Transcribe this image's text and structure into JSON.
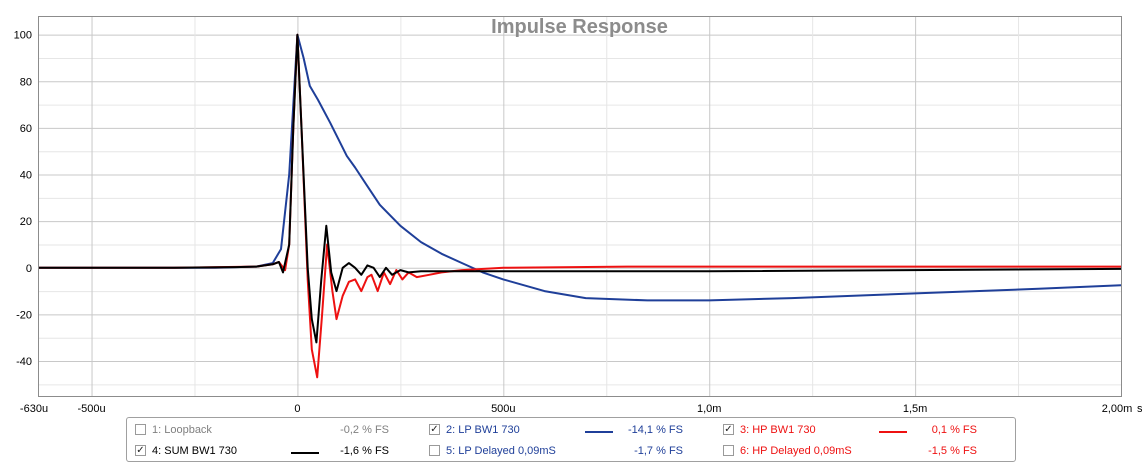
{
  "chart_data": {
    "type": "line",
    "title": "Impulse Response",
    "x_unit_label": "s",
    "xlim": [
      -630,
      2000
    ],
    "ylim": [
      -55,
      108
    ],
    "grid": true,
    "legend_placement": "bottom",
    "x_ticks": [
      {
        "value": -630,
        "label": "-630u"
      },
      {
        "value": -500,
        "label": "-500u"
      },
      {
        "value": 0,
        "label": "0"
      },
      {
        "value": 500,
        "label": "500u"
      },
      {
        "value": 1000,
        "label": "1,0m"
      },
      {
        "value": 1500,
        "label": "1,5m"
      },
      {
        "value": 2000,
        "label": "2,00m"
      }
    ],
    "y_ticks": [
      100,
      80,
      60,
      40,
      20,
      0,
      -20,
      -40
    ],
    "series": [
      {
        "name": "2: LP BW1 730",
        "color": "#1f3f99",
        "points": [
          [
            -630,
            0
          ],
          [
            -400,
            0
          ],
          [
            -200,
            0
          ],
          [
            -100,
            0.5
          ],
          [
            -60,
            2
          ],
          [
            -40,
            8
          ],
          [
            -20,
            40
          ],
          [
            0,
            100
          ],
          [
            15,
            90
          ],
          [
            30,
            78
          ],
          [
            50,
            72
          ],
          [
            80,
            62
          ],
          [
            100,
            55
          ],
          [
            120,
            48
          ],
          [
            140,
            43
          ],
          [
            170,
            35
          ],
          [
            200,
            27
          ],
          [
            250,
            18
          ],
          [
            300,
            11
          ],
          [
            350,
            6
          ],
          [
            400,
            2
          ],
          [
            450,
            -2
          ],
          [
            500,
            -5
          ],
          [
            600,
            -10
          ],
          [
            700,
            -13
          ],
          [
            850,
            -14
          ],
          [
            1000,
            -14
          ],
          [
            1200,
            -13
          ],
          [
            1500,
            -11
          ],
          [
            1800,
            -9
          ],
          [
            2000,
            -7.5
          ]
        ]
      },
      {
        "name": "3: HP BW1 730",
        "color": "#ee1111",
        "points": [
          [
            -630,
            0
          ],
          [
            -300,
            0
          ],
          [
            -100,
            0.5
          ],
          [
            -60,
            1.5
          ],
          [
            -45,
            2.5
          ],
          [
            -30,
            -1
          ],
          [
            -20,
            10
          ],
          [
            -10,
            60
          ],
          [
            0,
            100
          ],
          [
            10,
            60
          ],
          [
            25,
            -5
          ],
          [
            35,
            -35
          ],
          [
            48,
            -47
          ],
          [
            60,
            -20
          ],
          [
            72,
            10
          ],
          [
            85,
            -10
          ],
          [
            95,
            -22
          ],
          [
            110,
            -12
          ],
          [
            125,
            -6
          ],
          [
            140,
            -5
          ],
          [
            155,
            -10
          ],
          [
            170,
            -4
          ],
          [
            180,
            -3
          ],
          [
            195,
            -10
          ],
          [
            210,
            -2
          ],
          [
            225,
            -7
          ],
          [
            240,
            -1
          ],
          [
            255,
            -5
          ],
          [
            270,
            -2
          ],
          [
            290,
            -4
          ],
          [
            320,
            -3
          ],
          [
            350,
            -2
          ],
          [
            400,
            -1
          ],
          [
            500,
            0
          ],
          [
            800,
            0.5
          ],
          [
            2000,
            0.5
          ]
        ]
      },
      {
        "name": "4: SUM BW1 730",
        "color": "#000000",
        "points": [
          [
            -630,
            0
          ],
          [
            -300,
            0
          ],
          [
            -150,
            0.3
          ],
          [
            -100,
            0.5
          ],
          [
            -60,
            1.5
          ],
          [
            -45,
            2.5
          ],
          [
            -35,
            -2
          ],
          [
            -20,
            10
          ],
          [
            -10,
            60
          ],
          [
            0,
            100
          ],
          [
            10,
            60
          ],
          [
            25,
            0
          ],
          [
            35,
            -22
          ],
          [
            46,
            -32
          ],
          [
            58,
            -5
          ],
          [
            70,
            18
          ],
          [
            82,
            -2
          ],
          [
            95,
            -10
          ],
          [
            110,
            0
          ],
          [
            125,
            2
          ],
          [
            140,
            0
          ],
          [
            155,
            -3
          ],
          [
            170,
            1
          ],
          [
            185,
            0
          ],
          [
            200,
            -4
          ],
          [
            215,
            0
          ],
          [
            230,
            -3
          ],
          [
            250,
            -1
          ],
          [
            270,
            -2
          ],
          [
            300,
            -1.5
          ],
          [
            350,
            -1.5
          ],
          [
            400,
            -1.5
          ],
          [
            600,
            -1.5
          ],
          [
            1000,
            -1.5
          ],
          [
            2000,
            -0.5
          ]
        ]
      }
    ]
  },
  "legend": {
    "rows": [
      [
        {
          "label": "1: Loopback",
          "value": "-0,2 % FS",
          "checked": false,
          "color": "#808080",
          "show_line": false
        },
        {
          "label": "2: LP BW1 730",
          "value": "-14,1 % FS",
          "checked": true,
          "color": "#1f3f99",
          "show_line": true
        },
        {
          "label": "3: HP BW1 730",
          "value": "0,1 % FS",
          "checked": true,
          "color": "#ee1111",
          "show_line": true
        }
      ],
      [
        {
          "label": "4: SUM BW1 730",
          "value": "-1,6 % FS",
          "checked": true,
          "color": "#000000",
          "show_line": true
        },
        {
          "label": "5: LP Delayed 0,09mS",
          "value": "-1,7 % FS",
          "checked": false,
          "color": "#1f3f99",
          "show_line": false
        },
        {
          "label": "6: HP Delayed 0,09mS",
          "value": "-1,5 % FS",
          "checked": false,
          "color": "#ee1111",
          "show_line": false
        }
      ]
    ]
  },
  "colors": {
    "plot_border": "#8c8c8c",
    "grid": "#c8c8c8",
    "title": "#8c8c8c"
  }
}
